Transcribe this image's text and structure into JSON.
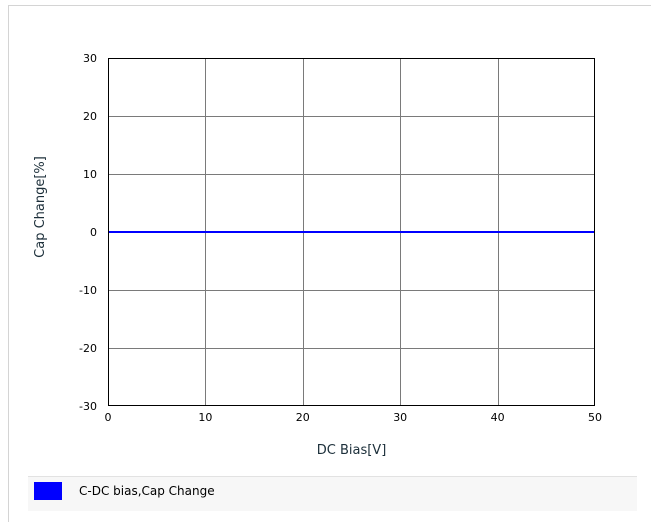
{
  "chart_data": {
    "type": "line",
    "xlabel": "DC Bias[V]",
    "ylabel": "Cap Change[%]",
    "xlim": [
      0,
      50
    ],
    "ylim": [
      -30,
      30
    ],
    "x_ticks": [
      0,
      10,
      20,
      30,
      40,
      50
    ],
    "y_ticks": [
      30,
      20,
      10,
      0,
      -10,
      -20,
      -30
    ],
    "grid": true,
    "legend_position": "bottom",
    "series": [
      {
        "name": "C-DC bias,Cap Change",
        "color": "#0000ff",
        "x": [
          0,
          50
        ],
        "y": [
          0,
          0
        ]
      }
    ]
  },
  "legend": {
    "label": "C-DC bias,Cap Change"
  }
}
